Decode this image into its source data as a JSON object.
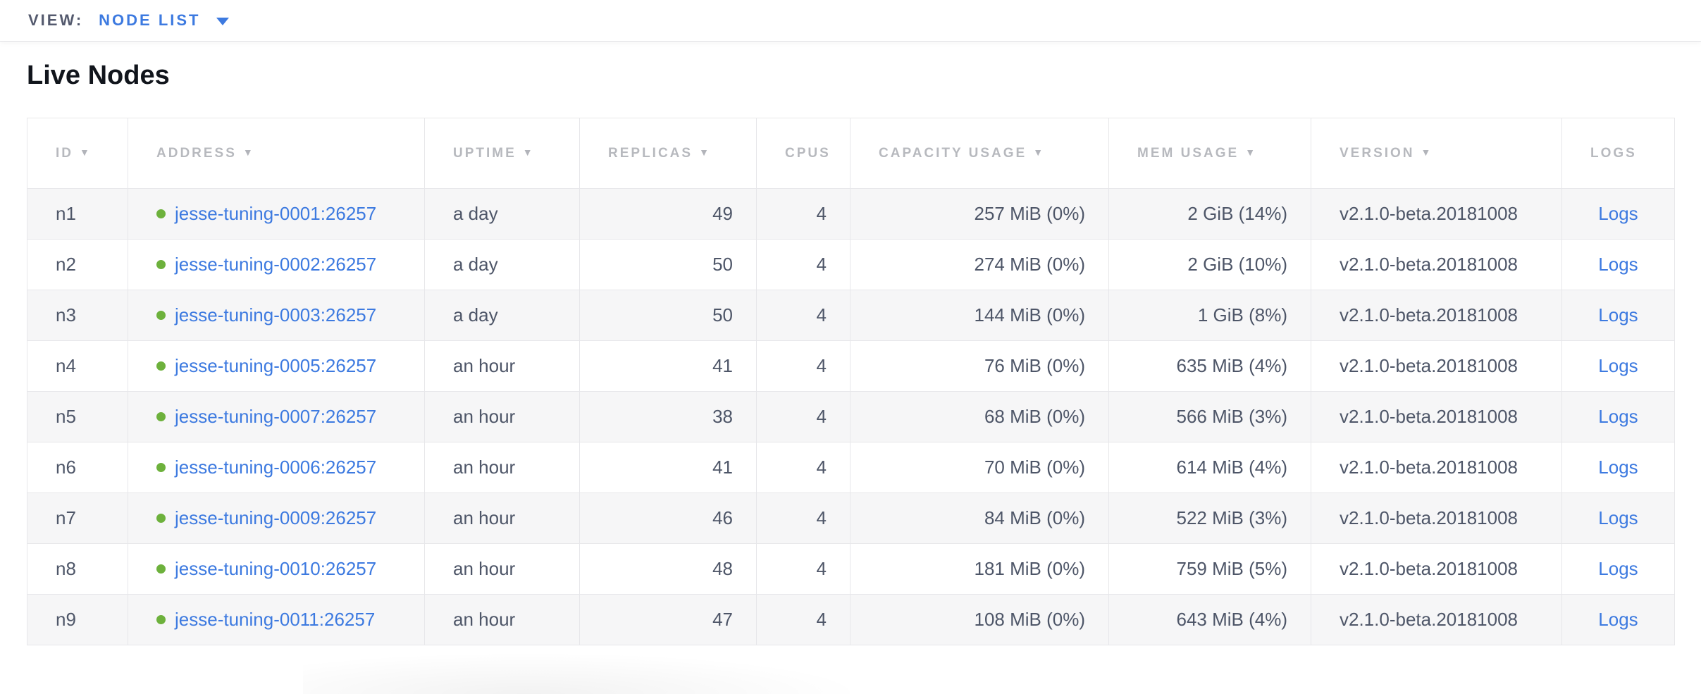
{
  "view_bar": {
    "label": "VIEW:",
    "selected": "NODE LIST"
  },
  "page": {
    "title": "Live Nodes"
  },
  "table": {
    "columns": [
      {
        "key": "id",
        "label": "ID",
        "sortable": true,
        "align": "left"
      },
      {
        "key": "address",
        "label": "ADDRESS",
        "sortable": true,
        "align": "left"
      },
      {
        "key": "uptime",
        "label": "UPTIME",
        "sortable": true,
        "align": "left"
      },
      {
        "key": "replicas",
        "label": "REPLICAS",
        "sortable": true,
        "align": "right"
      },
      {
        "key": "cpus",
        "label": "CPUS",
        "sortable": false,
        "align": "right"
      },
      {
        "key": "capacity",
        "label": "CAPACITY USAGE",
        "sortable": true,
        "align": "right"
      },
      {
        "key": "mem",
        "label": "MEM USAGE",
        "sortable": true,
        "align": "right"
      },
      {
        "key": "version",
        "label": "VERSION",
        "sortable": true,
        "align": "left"
      },
      {
        "key": "logs",
        "label": "LOGS",
        "sortable": false,
        "align": "center"
      }
    ],
    "rows": [
      {
        "id": "n1",
        "status": "live",
        "address": "jesse-tuning-0001:26257",
        "uptime": "a day",
        "replicas": "49",
        "cpus": "4",
        "capacity": "257 MiB (0%)",
        "mem": "2 GiB (14%)",
        "version": "v2.1.0-beta.20181008",
        "logs": "Logs"
      },
      {
        "id": "n2",
        "status": "live",
        "address": "jesse-tuning-0002:26257",
        "uptime": "a day",
        "replicas": "50",
        "cpus": "4",
        "capacity": "274 MiB (0%)",
        "mem": "2 GiB (10%)",
        "version": "v2.1.0-beta.20181008",
        "logs": "Logs"
      },
      {
        "id": "n3",
        "status": "live",
        "address": "jesse-tuning-0003:26257",
        "uptime": "a day",
        "replicas": "50",
        "cpus": "4",
        "capacity": "144 MiB (0%)",
        "mem": "1 GiB (8%)",
        "version": "v2.1.0-beta.20181008",
        "logs": "Logs"
      },
      {
        "id": "n4",
        "status": "live",
        "address": "jesse-tuning-0005:26257",
        "uptime": "an hour",
        "replicas": "41",
        "cpus": "4",
        "capacity": "76 MiB (0%)",
        "mem": "635 MiB (4%)",
        "version": "v2.1.0-beta.20181008",
        "logs": "Logs"
      },
      {
        "id": "n5",
        "status": "live",
        "address": "jesse-tuning-0007:26257",
        "uptime": "an hour",
        "replicas": "38",
        "cpus": "4",
        "capacity": "68 MiB (0%)",
        "mem": "566 MiB (3%)",
        "version": "v2.1.0-beta.20181008",
        "logs": "Logs"
      },
      {
        "id": "n6",
        "status": "live",
        "address": "jesse-tuning-0006:26257",
        "uptime": "an hour",
        "replicas": "41",
        "cpus": "4",
        "capacity": "70 MiB (0%)",
        "mem": "614 MiB (4%)",
        "version": "v2.1.0-beta.20181008",
        "logs": "Logs"
      },
      {
        "id": "n7",
        "status": "live",
        "address": "jesse-tuning-0009:26257",
        "uptime": "an hour",
        "replicas": "46",
        "cpus": "4",
        "capacity": "84 MiB (0%)",
        "mem": "522 MiB (3%)",
        "version": "v2.1.0-beta.20181008",
        "logs": "Logs"
      },
      {
        "id": "n8",
        "status": "live",
        "address": "jesse-tuning-0010:26257",
        "uptime": "an hour",
        "replicas": "48",
        "cpus": "4",
        "capacity": "181 MiB (0%)",
        "mem": "759 MiB (5%)",
        "version": "v2.1.0-beta.20181008",
        "logs": "Logs"
      },
      {
        "id": "n9",
        "status": "live",
        "address": "jesse-tuning-0011:26257",
        "uptime": "an hour",
        "replicas": "47",
        "cpus": "4",
        "capacity": "108 MiB (0%)",
        "mem": "643 MiB (4%)",
        "version": "v2.1.0-beta.20181008",
        "logs": "Logs"
      }
    ]
  },
  "colors": {
    "link_blue": "#3d7ae0",
    "live_dot_green": "#6db13c",
    "body_text": "#4e5668",
    "header_text": "#b7b9be",
    "view_label_text": "#545a6e",
    "row_stripe": "#f6f6f7",
    "table_border": "#e7e7ea"
  }
}
